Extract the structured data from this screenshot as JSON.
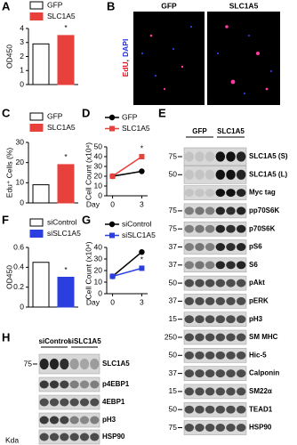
{
  "panel_labels": [
    "A",
    "B",
    "C",
    "D",
    "E",
    "F",
    "G",
    "H"
  ],
  "chart_data": [
    {
      "type": "bar",
      "ylabel": "OD450",
      "ylim": [
        0,
        4
      ],
      "yticks": [
        0,
        1,
        2,
        3,
        4
      ],
      "series": [
        {
          "name": "GFP",
          "color": "#ffffff",
          "values": [
            2.9
          ]
        },
        {
          "name": "SLC1A5",
          "color": "#e8413c",
          "values": [
            3.5
          ],
          "annotation": "*"
        }
      ]
    },
    {
      "type": "bar",
      "ylabel": "Edu⁺ Cells (%)",
      "ylim": [
        0,
        30
      ],
      "yticks": [
        0,
        10,
        20,
        30
      ],
      "series": [
        {
          "name": "GFP",
          "color": "#ffffff",
          "values": [
            9
          ]
        },
        {
          "name": "SLC1A5",
          "color": "#e8413c",
          "values": [
            19
          ],
          "annotation": "*"
        }
      ]
    },
    {
      "type": "line",
      "ylabel": "Cell Count (x10⁴)",
      "xlabel": "Day",
      "x": [
        0,
        3
      ],
      "xlim": [
        -0.6,
        3.6
      ],
      "xticks": [
        0,
        3
      ],
      "ylim": [
        0,
        50
      ],
      "yticks": [
        0,
        10,
        20,
        30,
        40,
        50
      ],
      "series": [
        {
          "name": "GFP",
          "color": "#000000",
          "marker": "circle",
          "values": [
            20,
            25
          ]
        },
        {
          "name": "SLC1A5",
          "color": "#e8413c",
          "marker": "square",
          "values": [
            20,
            40
          ],
          "annotation": "*"
        }
      ]
    },
    {
      "type": "bar",
      "ylabel": "OD450",
      "ylim": [
        0,
        0.6
      ],
      "yticks": [
        0,
        0.2,
        0.4,
        0.6
      ],
      "series": [
        {
          "name": "siControl",
          "color": "#ffffff",
          "values": [
            0.45
          ]
        },
        {
          "name": "siSLC1A5",
          "color": "#2b3fe0",
          "values": [
            0.3
          ],
          "annotation": "*"
        }
      ]
    },
    {
      "type": "line",
      "ylabel": "Cell Count (x10⁴)",
      "xlabel": "Day",
      "x": [
        0,
        3
      ],
      "xlim": [
        -0.6,
        3.6
      ],
      "xticks": [
        0,
        3
      ],
      "ylim": [
        0,
        40
      ],
      "yticks": [
        0,
        10,
        20,
        30,
        40
      ],
      "series": [
        {
          "name": "siControl",
          "color": "#000000",
          "marker": "circle",
          "values": [
            15,
            36
          ]
        },
        {
          "name": "siSLC1A5",
          "color": "#2b3fe0",
          "marker": "square",
          "values": [
            15,
            22
          ],
          "annotation": "*"
        }
      ]
    }
  ],
  "image_b": {
    "panels": [
      "GFP",
      "SLC1A5"
    ],
    "stain_label": {
      "edu": "EdU",
      "separator": ",",
      "dapi": "DAPI"
    }
  },
  "blot_e": {
    "lanes": [
      "GFP",
      "SLC1A5"
    ],
    "rows": [
      {
        "label": "SLC1A5 (S)",
        "kda": 75
      },
      {
        "label": "SLC1A5 (L)",
        "kda": 50
      },
      {
        "label": "Myc tag"
      },
      {
        "label": "pp70S6K",
        "kda": 75
      },
      {
        "label": "p70S6K",
        "kda": 75
      },
      {
        "label": "pS6",
        "kda": 37
      },
      {
        "label": "S6",
        "kda": 37
      },
      {
        "label": "pAkt",
        "kda": 50
      },
      {
        "label": "pERK",
        "kda": 37
      },
      {
        "label": "pH3",
        "kda": 15
      },
      {
        "label": "SM MHC",
        "kda": 250
      },
      {
        "label": "Hic-5",
        "kda": 50
      },
      {
        "label": "Calponin",
        "kda": 37
      },
      {
        "label": "SM22α",
        "kda": 15
      },
      {
        "label": "TEAD1",
        "kda": 50
      },
      {
        "label": "HSP90",
        "kda": 75
      }
    ]
  },
  "blot_h": {
    "lanes": [
      "siControl",
      "siSLC1A5"
    ],
    "unit": "Kda",
    "rows": [
      {
        "label": "SLC1A5",
        "kda": 75
      },
      {
        "label": "p4EBP1"
      },
      {
        "label": "4EBP1"
      },
      {
        "label": "pH3"
      },
      {
        "label": "HSP90"
      }
    ]
  }
}
